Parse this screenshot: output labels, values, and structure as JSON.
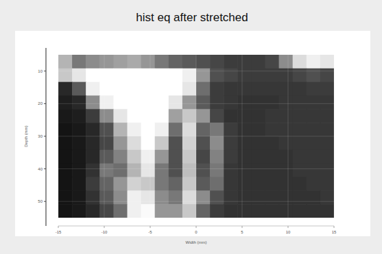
{
  "chart_data": {
    "type": "heatmap",
    "title": "hist eq after stretched",
    "x_label": "Width (mm)",
    "y_label": "Depth (mm)",
    "xlim": [
      -15,
      15
    ],
    "ylim": [
      5,
      55
    ],
    "xticks": [
      -15,
      -10,
      -5,
      0,
      5,
      10,
      15
    ],
    "yticks": [
      10,
      20,
      30,
      40,
      50
    ],
    "grid": true,
    "cells": [
      [
        180,
        120,
        140,
        150,
        160,
        170,
        150,
        120,
        100,
        90,
        80,
        70,
        60,
        60,
        60,
        70,
        140,
        220,
        240,
        230
      ],
      [
        200,
        230,
        255,
        255,
        255,
        255,
        255,
        255,
        255,
        240,
        150,
        80,
        70,
        60,
        60,
        60,
        60,
        70,
        80,
        70
      ],
      [
        40,
        90,
        240,
        255,
        255,
        255,
        255,
        255,
        255,
        230,
        110,
        60,
        55,
        55,
        55,
        55,
        55,
        55,
        60,
        60
      ],
      [
        30,
        40,
        140,
        240,
        255,
        255,
        255,
        255,
        230,
        150,
        90,
        60,
        55,
        50,
        50,
        50,
        55,
        55,
        55,
        55
      ],
      [
        25,
        30,
        60,
        140,
        230,
        255,
        255,
        255,
        160,
        200,
        150,
        70,
        50,
        50,
        50,
        55,
        55,
        55,
        55,
        55
      ],
      [
        20,
        25,
        40,
        80,
        180,
        240,
        255,
        240,
        110,
        220,
        100,
        120,
        60,
        50,
        50,
        55,
        55,
        55,
        55,
        55
      ],
      [
        20,
        25,
        40,
        70,
        150,
        220,
        255,
        200,
        80,
        210,
        80,
        140,
        60,
        50,
        50,
        50,
        55,
        55,
        55,
        55
      ],
      [
        20,
        25,
        40,
        90,
        130,
        200,
        240,
        150,
        80,
        200,
        70,
        130,
        60,
        50,
        50,
        50,
        50,
        55,
        55,
        55
      ],
      [
        20,
        25,
        50,
        120,
        110,
        180,
        230,
        120,
        80,
        190,
        80,
        120,
        55,
        50,
        50,
        50,
        50,
        55,
        55,
        55
      ],
      [
        20,
        25,
        60,
        100,
        150,
        210,
        200,
        120,
        100,
        200,
        90,
        110,
        55,
        50,
        50,
        50,
        50,
        50,
        55,
        55
      ],
      [
        20,
        25,
        50,
        90,
        140,
        240,
        230,
        140,
        120,
        220,
        140,
        80,
        55,
        50,
        50,
        50,
        50,
        50,
        50,
        55
      ],
      [
        20,
        25,
        40,
        70,
        110,
        240,
        250,
        150,
        150,
        200,
        100,
        60,
        50,
        50,
        50,
        50,
        50,
        50,
        50,
        50
      ]
    ]
  }
}
